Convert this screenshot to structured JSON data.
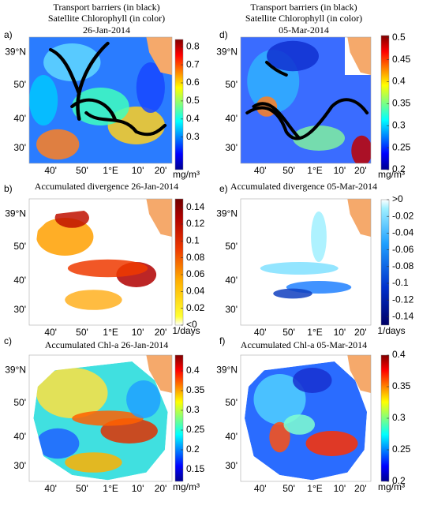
{
  "map_axes": {
    "lat_labels": [
      "39°N",
      "50'",
      "40'",
      "30'"
    ],
    "lon_labels": [
      "40'",
      "50'",
      "1°E",
      "10'",
      "20'"
    ]
  },
  "panels": [
    {
      "label": "a)",
      "title": [
        "Transport barriers (in black)",
        "Satellite Chlorophyll (in color)",
        "26-Jan-2014"
      ],
      "colorbar": {
        "lim": [
          0.12,
          0.84
        ],
        "ticks": [
          0.3,
          0.4,
          0.5,
          0.6,
          0.7,
          0.8
        ],
        "unit": "mg/m³"
      }
    },
    {
      "label": "b)",
      "title": [
        "Accumulated divergence  26-Jan-2014"
      ],
      "colorbar": {
        "lim": [
          0,
          0.15
        ],
        "ticks": [
          {
            "value": 0,
            "label": "<0"
          },
          0.02,
          0.04,
          0.06,
          0.08,
          0.1,
          0.12,
          0.14
        ],
        "unit": "1/days"
      }
    },
    {
      "label": "c)",
      "title": [
        "Accumulated Chl-a  26-Jan-2014"
      ],
      "colorbar": {
        "lim": [
          0.12,
          0.44
        ],
        "ticks": [
          0.15,
          0.2,
          0.25,
          0.3,
          0.35,
          0.4
        ],
        "unit": "mg/m³"
      }
    },
    {
      "label": "d)",
      "title": [
        "Transport barriers (in black)",
        "Satellite Chlorophyll (in color)",
        "05-Mar-2014"
      ],
      "colorbar": {
        "lim": [
          0.2,
          0.505
        ],
        "ticks": [
          0.2,
          0.25,
          0.3,
          0.35,
          0.4,
          0.45,
          0.5
        ],
        "unit": "mg/m³"
      }
    },
    {
      "label": "e)",
      "title": [
        "Accumulated divergence  05-Mar-2014"
      ],
      "colorbar": {
        "lim": [
          -0.15,
          0
        ],
        "ticks": [
          {
            "value": 0,
            "label": ">0"
          },
          -0.02,
          -0.04,
          -0.06,
          -0.08,
          -0.1,
          -0.12,
          -0.14
        ],
        "unit": "1/days"
      }
    },
    {
      "label": "f)",
      "title": [
        "Accumulated Chl-a  05-Mar-2014"
      ],
      "colorbar": {
        "lim": [
          0.2,
          0.4
        ],
        "ticks": [
          0.2,
          0.25,
          0.3,
          0.35,
          0.4
        ],
        "unit": "mg/m³"
      }
    }
  ]
}
